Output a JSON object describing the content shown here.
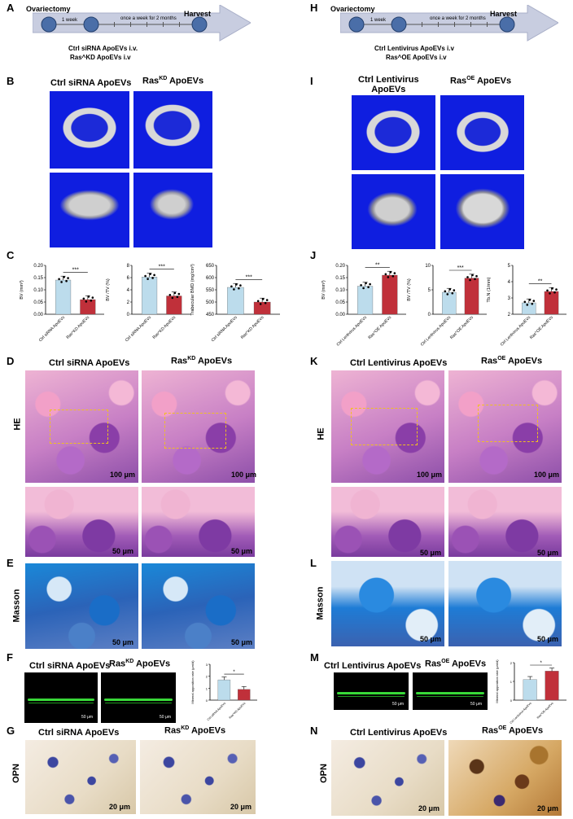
{
  "letters": {
    "A": "A",
    "B": "B",
    "C": "C",
    "D": "D",
    "E": "E",
    "F": "F",
    "G": "G",
    "H": "H",
    "I": "I",
    "J": "J",
    "K": "K",
    "L": "L",
    "M": "M",
    "N": "N"
  },
  "left": {
    "timeline": {
      "start": "Ovariectomy",
      "week": "1 week",
      "weekly": "once a week for 2 months",
      "end": "Harvest",
      "treat1": "Ctrl siRNA ApoEVs i.v.",
      "treat2": "Ras^KD ApoEVs i.v"
    },
    "ctrl": "Ctrl siRNA ApoEVs",
    "ras_base": "Ras",
    "ras_sup": "KD",
    "ras_tail": " ApoEVs",
    "he_label": "HE",
    "masson_label": "Masson",
    "opn_label": "OPN",
    "scale100": "100 μm",
    "scale50": "50 μm",
    "scale20": "20 μm",
    "fl_scale": "50 μm"
  },
  "right": {
    "timeline": {
      "start": "Ovariectomy",
      "week": "1 week",
      "weekly": "once a week for 2 months",
      "end": "Harvest",
      "treat1": "Ctrl Lentivirus ApoEVs i.v",
      "treat2": "Ras^OE ApoEVs i.v"
    },
    "ctrl": "Ctrl Lentivirus ApoEVs",
    "ctrl_ct1": "Ctrl Lentivirus",
    "ctrl_ct2": "ApoEVs",
    "ras_base": "Ras",
    "ras_sup": "OE",
    "ras_tail": " ApoEVs",
    "he_label": "HE",
    "masson_label": "Masson",
    "opn_label": "OPN",
    "scale100": "100 μm",
    "scale50": "50 μm",
    "scale20": "20 μm",
    "fl_scale": "50 μm"
  },
  "chart_data": [
    {
      "type": "bar",
      "panel": "C",
      "ylabel": "BV (mm³)",
      "ylim": [
        0,
        0.2
      ],
      "yticks": [
        "0.00",
        "0.05",
        "0.10",
        "0.15",
        "0.20"
      ],
      "categories": [
        "Ctrl siRNA ApoEVs",
        "Ras^KD ApoEVs"
      ],
      "values": [
        0.14,
        0.06
      ],
      "sig": "***"
    },
    {
      "type": "bar",
      "panel": "C",
      "ylabel": "BV /TV (%)",
      "ylim": [
        0,
        8
      ],
      "yticks": [
        "0",
        "2",
        "4",
        "6",
        "8"
      ],
      "categories": [
        "Ctrl siRNA ApoEVs",
        "Ras^KD ApoEVs"
      ],
      "values": [
        6.1,
        3.0
      ],
      "sig": "***"
    },
    {
      "type": "bar",
      "panel": "C",
      "ylabel": "Trabecular BMD (mg/cm³)",
      "ylim": [
        450,
        650
      ],
      "yticks": [
        "450",
        "500",
        "550",
        "600",
        "650"
      ],
      "categories": [
        "Ctrl siRNA ApoEVs",
        "Ras^KD ApoEVs"
      ],
      "values": [
        560,
        500
      ],
      "sig": "***"
    },
    {
      "type": "bar",
      "panel": "J",
      "ylabel": "BV (mm³)",
      "ylim": [
        0,
        0.2
      ],
      "yticks": [
        "0.00",
        "0.05",
        "0.10",
        "0.15",
        "0.20"
      ],
      "categories": [
        "Ctrl Lentivirus ApoEVs",
        "Ras^OE ApoEVs"
      ],
      "values": [
        0.115,
        0.16
      ],
      "sig": "**"
    },
    {
      "type": "bar",
      "panel": "J",
      "ylabel": "BV /TV (%)",
      "ylim": [
        0,
        10
      ],
      "yticks": [
        "0",
        "5",
        "10"
      ],
      "categories": [
        "Ctrl Lentivirus ApoEVs",
        "Ras^OE ApoEVs"
      ],
      "values": [
        4.5,
        7.4
      ],
      "sig": "***"
    },
    {
      "type": "bar",
      "panel": "J",
      "ylabel": "Tb.N (1/mm)",
      "ylim": [
        2,
        5
      ],
      "yticks": [
        "2",
        "3",
        "4",
        "5"
      ],
      "categories": [
        "Ctrl Lentivirus ApoEVs",
        "Ras^OE ApoEVs"
      ],
      "values": [
        2.7,
        3.4
      ],
      "sig": "**"
    },
    {
      "type": "bar",
      "panel": "F",
      "ylabel": "Mineral apposition rate (μm/d)",
      "ylim": [
        0,
        3
      ],
      "yticks": [
        "0",
        "1",
        "2",
        "3"
      ],
      "categories": [
        "Ctrl siRNA ApoEVs",
        "Ras^KD ApoEVs"
      ],
      "values": [
        1.7,
        0.9
      ],
      "sig": "*"
    },
    {
      "type": "bar",
      "panel": "M",
      "ylabel": "Mineral apposition rate (μm/d)",
      "ylim": [
        0,
        2
      ],
      "yticks": [
        "0",
        "1",
        "2"
      ],
      "categories": [
        "Ctrl Lentivirus ApoEVs",
        "Ras^OE ApoEVs"
      ],
      "values": [
        1.1,
        1.55
      ],
      "sig": "*"
    }
  ],
  "colors": {
    "ctrl_bar": "#bcdcec",
    "treat_bar": "#c0303a",
    "ct_bg": "#0f1ee0",
    "arrow": "#c8cde0"
  }
}
